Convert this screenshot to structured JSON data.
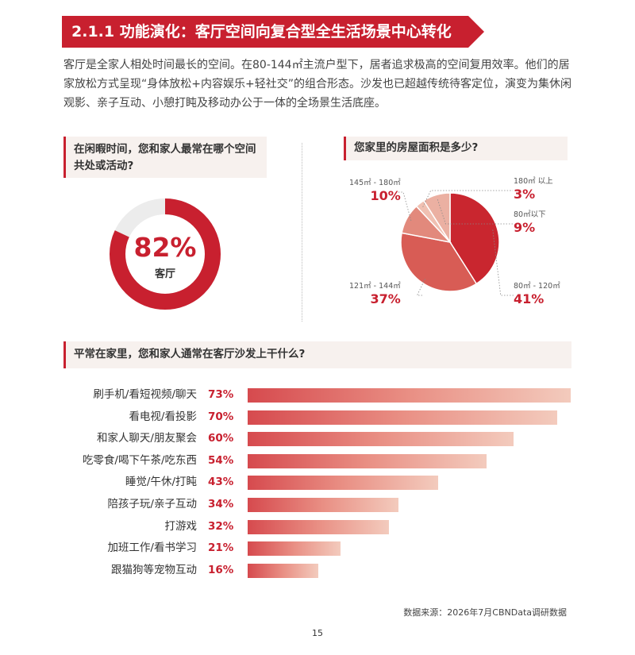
{
  "section": {
    "title": "2.1.1 功能演化：客厅空间向复合型全生活场景中心转化",
    "intro": "客厅是全家人相处时间最长的空间。在80-144㎡主流户型下，居者追求极高的空间复用效率。他们的居家放松方式呈现“身体放松+内容娱乐+轻社交”的组合形态。沙发也已超越传统待客定位，演变为集休闲观影、亲子互动、小憩打盹及移动办公于一体的全场景生活底座。"
  },
  "questions": {
    "q1": "在闲暇时间，您和家人最常在哪个空间共处或活动?",
    "q2": "您家里的房屋面积是多少?",
    "q3": "平常在家里，您和家人通常在客厅沙发上干什么?"
  },
  "colors": {
    "accent": "#c8202f",
    "donut_track": "#ececec"
  },
  "chart_data": [
    {
      "type": "pie",
      "variant": "donut",
      "value": 82,
      "center_label": "82%",
      "center_sub": "客厅"
    },
    {
      "type": "pie",
      "slices": [
        {
          "label": "80㎡ - 120㎡",
          "value": 41,
          "pct_label": "41%",
          "color": "#c9262f"
        },
        {
          "label": "121㎡ - 144㎡",
          "value": 37,
          "pct_label": "37%",
          "color": "#d85c55"
        },
        {
          "label": "145㎡ - 180㎡",
          "value": 10,
          "pct_label": "10%",
          "color": "#e2897c"
        },
        {
          "label": "180㎡ 以上",
          "value": 3,
          "pct_label": "3%",
          "color": "#f0c0b2"
        },
        {
          "label": "80㎡以下",
          "value": 9,
          "pct_label": "9%",
          "color": "#ebb0a2"
        }
      ]
    },
    {
      "type": "bar",
      "orientation": "horizontal",
      "xlim": [
        0,
        73
      ],
      "categories": [
        "刷手机/看短视频/聊天",
        "看电视/看投影",
        "和家人聊天/朋友聚会",
        "吃零食/喝下午茶/吃东西",
        "睡觉/午休/打盹",
        "陪孩子玩/亲子互动",
        "打游戏",
        "加班工作/看书学习",
        "跟猫狗等宠物互动"
      ],
      "values": [
        73,
        70,
        60,
        54,
        43,
        34,
        32,
        21,
        16
      ],
      "value_labels": [
        "73%",
        "70%",
        "60%",
        "54%",
        "43%",
        "34%",
        "32%",
        "21%",
        "16%"
      ]
    }
  ],
  "footer": {
    "source": "数据来源：2026年7月CBNData调研数据",
    "page_number": "15"
  }
}
